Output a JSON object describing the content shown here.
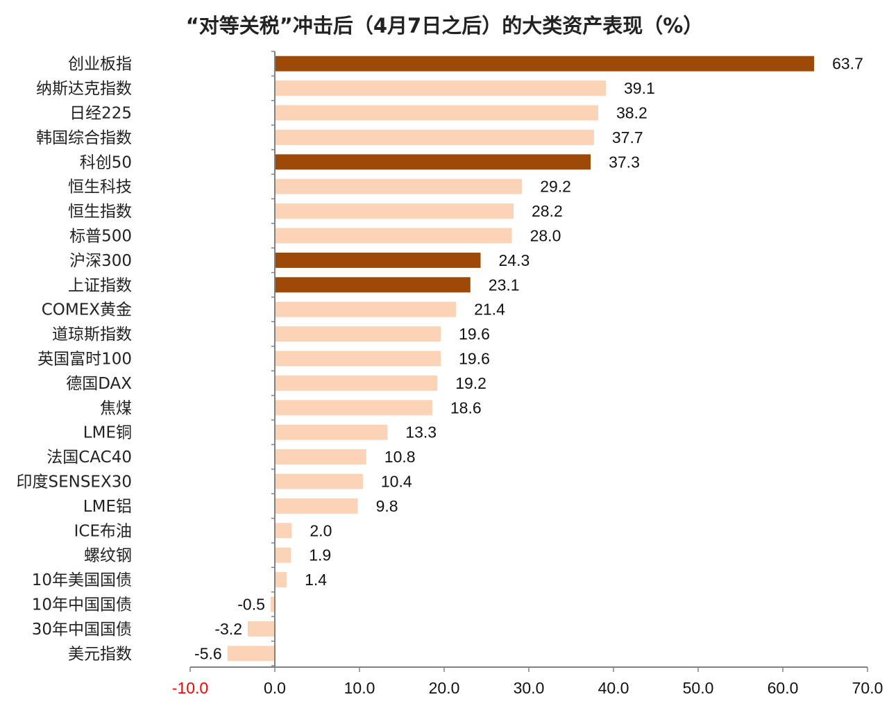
{
  "chart_data": {
    "type": "bar",
    "orientation": "horizontal",
    "title": "“对等关税”冲击后（4月7日之后）的大类资产表现（%）",
    "categories": [
      "创业板指",
      "纳斯达克指数",
      "日经225",
      "韩国综合指数",
      "科创50",
      "恒生科技",
      "恒生指数",
      "标普500",
      "沪深300",
      "上证指数",
      "COMEX黄金",
      "道琼斯指数",
      "英国富时100",
      "德国DAX",
      "焦煤",
      "LME铜",
      "法国CAC40",
      "印度SENSEX30",
      "LME铝",
      "ICE布油",
      "螺纹钢",
      "10年美国国债",
      "10年中国国债",
      "30年中国国债",
      "美元指数"
    ],
    "values": [
      63.7,
      39.1,
      38.2,
      37.7,
      37.3,
      29.2,
      28.2,
      28.0,
      24.3,
      23.1,
      21.4,
      19.6,
      19.6,
      19.2,
      18.6,
      13.3,
      10.8,
      10.4,
      9.8,
      2.0,
      1.9,
      1.4,
      -0.5,
      -3.2,
      -5.6
    ],
    "value_labels": [
      "63.7",
      "39.1",
      "38.2",
      "37.7",
      "37.3",
      "29.2",
      "28.2",
      "28.0",
      "24.3",
      "23.1",
      "21.4",
      "19.6",
      "19.6",
      "19.2",
      "18.6",
      "13.3",
      "10.8",
      "10.4",
      "9.8",
      "2.0",
      "1.9",
      "1.4",
      "-0.5",
      "-3.2",
      "-5.6"
    ],
    "highlighted": [
      "创业板指",
      "科创50",
      "沪深300",
      "上证指数"
    ],
    "xlim": [
      -10,
      70
    ],
    "xticks": [
      "-10.0",
      "0.0",
      "10.0",
      "20.0",
      "30.0",
      "40.0",
      "50.0",
      "60.0",
      "70.0"
    ],
    "xtick_values": [
      -10,
      0,
      10,
      20,
      30,
      40,
      50,
      60,
      70
    ],
    "grid": false,
    "legend": "none",
    "colors": {
      "highlight": "#9C4A06",
      "normal": "#FBD3B7",
      "negative_text": "#FF0000",
      "text": "#222222",
      "axis": "#808080"
    }
  }
}
